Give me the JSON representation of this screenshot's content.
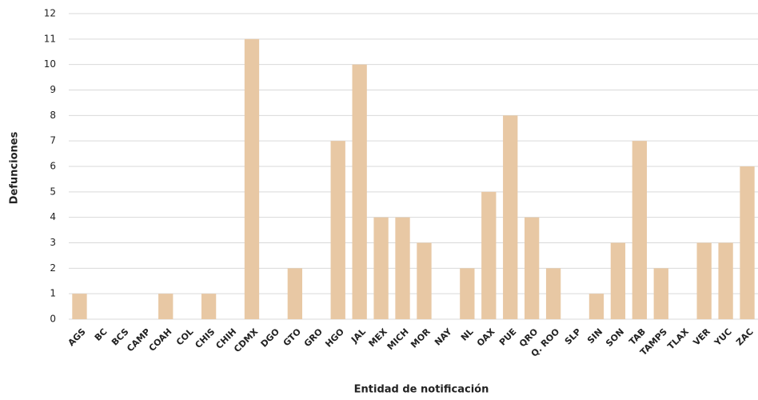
{
  "chart_data": {
    "type": "bar",
    "x_label": "Entidad de notificación",
    "y_label": "Defunciones",
    "categories": [
      "AGS",
      "BC",
      "BCS",
      "CAMP",
      "COAH",
      "COL",
      "CHIS",
      "CHIH",
      "CDMX",
      "DGO",
      "GTO",
      "GRO",
      "HGO",
      "JAL",
      "MEX",
      "MICH",
      "MOR",
      "NAY",
      "NL",
      "OAX",
      "PUE",
      "QRO",
      "Q. ROO",
      "SLP",
      "SIN",
      "SON",
      "TAB",
      "TAMPS",
      "TLAX",
      "VER",
      "YUC",
      "ZAC"
    ],
    "values": [
      1,
      0,
      0,
      0,
      1,
      0,
      1,
      0,
      11,
      0,
      2,
      0,
      7,
      10,
      4,
      4,
      3,
      0,
      2,
      5,
      8,
      4,
      2,
      0,
      1,
      3,
      7,
      2,
      0,
      3,
      3,
      6
    ],
    "color": "#e8c8a4",
    "ylim": [
      0,
      12
    ],
    "yticks": [
      0,
      1,
      2,
      3,
      4,
      5,
      6,
      7,
      8,
      9,
      10,
      11,
      12
    ],
    "grid": true
  }
}
